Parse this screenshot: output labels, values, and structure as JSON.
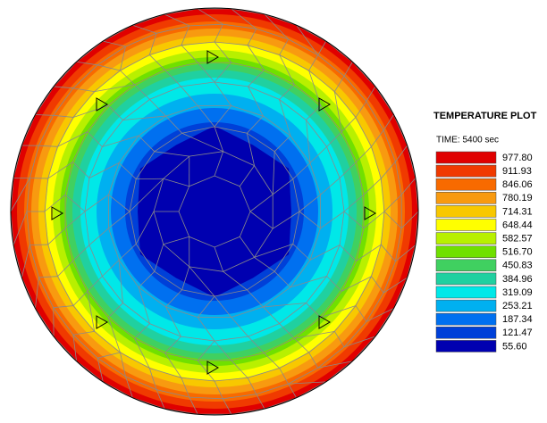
{
  "title": "TEMPERATURE PLOT",
  "time": "TIME: 5400 sec",
  "legend": [
    {
      "label": "977.80",
      "color": "#e00000"
    },
    {
      "label": "911.93",
      "color": "#f03a00"
    },
    {
      "label": "846.06",
      "color": "#f86a00"
    },
    {
      "label": "780.19",
      "color": "#f89a10"
    },
    {
      "label": "714.31",
      "color": "#f8c800"
    },
    {
      "label": "648.44",
      "color": "#ffff00"
    },
    {
      "label": "582.57",
      "color": "#b8f000"
    },
    {
      "label": "516.70",
      "color": "#70e000"
    },
    {
      "label": "450.83",
      "color": "#40d060"
    },
    {
      "label": "384.96",
      "color": "#20d0a0"
    },
    {
      "label": "319.09",
      "color": "#00e8e8"
    },
    {
      "label": "253.21",
      "color": "#00b0f0"
    },
    {
      "label": "187.34",
      "color": "#0070f0"
    },
    {
      "label": "121.47",
      "color": "#0040d8"
    },
    {
      "label": "55.60",
      "color": "#0000b0"
    }
  ]
}
